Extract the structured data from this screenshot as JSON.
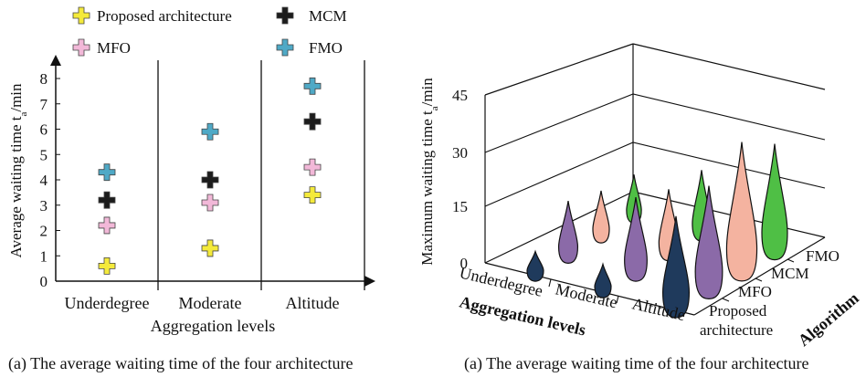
{
  "colors": {
    "proposed": "#f4ea3b",
    "mcm": "#1c1c1c",
    "mfo": "#f2b8d8",
    "fmo": "#4fa9c6",
    "violin_mfo": "#8b6aa8",
    "violin_mcm": "#f4b3a0",
    "violin_fmo": "#4fbf45",
    "violin_proposed": "#1f3a5c"
  },
  "chart_data": [
    {
      "type": "scatter",
      "caption": "(a) The average waiting time of the four architecture",
      "xlabel": "Aggregation levels",
      "ylabel_main": "Average waiting time t",
      "ylabel_sub": "a",
      "ylabel_unit": "/min",
      "categories": [
        "Underdegree",
        "Moderate",
        "Altitude"
      ],
      "ylim": [
        0,
        8
      ],
      "yticks": [
        "0",
        "1",
        "2",
        "3",
        "4",
        "5",
        "6",
        "7",
        "8"
      ],
      "legend": [
        {
          "name": "Proposed architecture",
          "key": "proposed"
        },
        {
          "name": "MCM",
          "key": "mcm"
        },
        {
          "name": "MFO",
          "key": "mfo"
        },
        {
          "name": "FMO",
          "key": "fmo"
        }
      ],
      "series": [
        {
          "name": "Proposed architecture",
          "key": "proposed",
          "values": [
            0.6,
            1.3,
            3.4
          ]
        },
        {
          "name": "MFO",
          "key": "mfo",
          "values": [
            2.2,
            3.1,
            4.5
          ]
        },
        {
          "name": "MCM",
          "key": "mcm",
          "values": [
            3.2,
            4.0,
            6.3
          ]
        },
        {
          "name": "FMO",
          "key": "fmo",
          "values": [
            4.3,
            5.9,
            7.7
          ]
        }
      ]
    },
    {
      "type": "violin-3d",
      "caption": "(a) The average waiting time of the four architecture",
      "xlabel": "Aggregation levels",
      "zlabel": "Algorithm",
      "ylabel_main": "Maximum waiting time t",
      "ylabel_sub": "a",
      "ylabel_unit": "/min",
      "zlim": [
        0,
        45
      ],
      "zticks": [
        "0",
        "15",
        "30",
        "45"
      ],
      "categories": [
        "Underdegree",
        "Moderate",
        "Altitude"
      ],
      "algorithms": [
        "Proposed architecture",
        "MFO",
        "MCM",
        "FMO"
      ],
      "algorithm_tick_labels": [
        "Proposed\narchitecture",
        "MFO",
        "MCM",
        "FMO"
      ],
      "series": [
        {
          "name": "Proposed architecture",
          "key": "violin_proposed",
          "values": [
            6,
            7,
            24
          ]
        },
        {
          "name": "MFO",
          "key": "violin_mfo",
          "values": [
            16,
            22,
            30
          ]
        },
        {
          "name": "MCM",
          "key": "violin_mcm",
          "values": [
            15,
            21,
            42
          ]
        },
        {
          "name": "FMO",
          "key": "violin_fmo",
          "values": [
            16,
            24,
            40
          ]
        }
      ]
    }
  ]
}
